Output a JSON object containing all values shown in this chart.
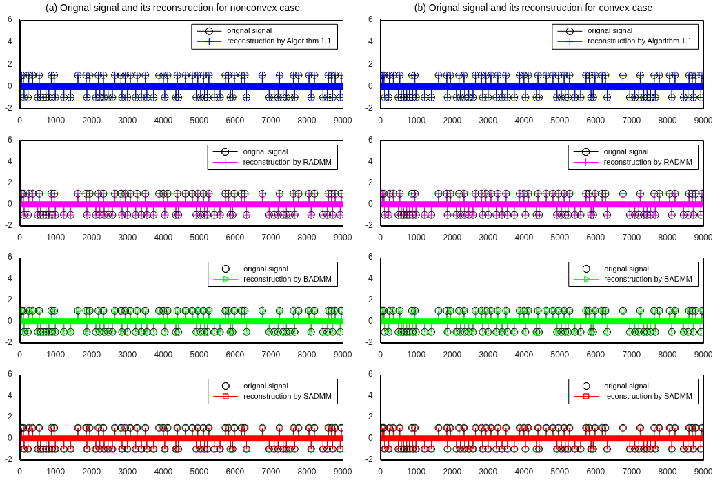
{
  "chart_data": [
    {
      "type": "lollipop",
      "title": "(a) Orignal signal and its reconstruction for nonconvex case",
      "x": [
        50,
        100,
        120,
        230,
        250,
        360,
        500,
        540,
        580,
        650,
        730,
        810,
        880,
        900,
        960,
        990,
        1230,
        1420,
        1620,
        1850,
        1870,
        1950,
        2120,
        2190,
        2230,
        2330,
        2350,
        2460,
        2580,
        2650,
        2820,
        2850,
        2940,
        3000,
        3080,
        3230,
        3270,
        3390,
        3500,
        3540,
        3730,
        3880,
        4000,
        4040,
        4120,
        4350,
        4390,
        4420,
        4620,
        4810,
        4920,
        4960,
        5040,
        5120,
        5150,
        5230,
        5270,
        5420,
        5580,
        5730,
        5820,
        5870,
        5930,
        5980,
        6180,
        6270,
        6320,
        6760,
        6950,
        7090,
        7200,
        7240,
        7340,
        7430,
        7530,
        7630,
        7660,
        7770,
        8060,
        8120,
        8210,
        8450,
        8570,
        8600,
        8690,
        8720,
        8790,
        8930,
        8960
      ],
      "xlim": [
        0,
        9000
      ],
      "xticks": [
        0,
        1000,
        2000,
        3000,
        4000,
        5000,
        6000,
        7000,
        8000,
        9000
      ],
      "ylim": [
        -2,
        6
      ],
      "yticks": [
        -2,
        0,
        2,
        4,
        6
      ],
      "legend": "top right",
      "ref_lines": [
        {
          "axis": "y",
          "value": 0,
          "color": "#0000ff"
        }
      ],
      "series": [
        {
          "name": "orignal signal",
          "color": "#000000",
          "marker": "circle",
          "values": [
            1,
            1,
            -1,
            -1,
            1,
            1,
            -1,
            1,
            -1,
            -1,
            -1,
            -1,
            1,
            -1,
            1,
            -1,
            -1,
            -1,
            1,
            1,
            -1,
            1,
            -1,
            1,
            -1,
            1,
            -1,
            -1,
            -1,
            1,
            1,
            -1,
            1,
            -1,
            1,
            -1,
            1,
            -1,
            1,
            -1,
            -1,
            1,
            1,
            -1,
            1,
            -1,
            1,
            -1,
            1,
            1,
            -1,
            1,
            -1,
            1,
            -1,
            -1,
            1,
            -1,
            -1,
            1,
            1,
            -1,
            -1,
            1,
            1,
            1,
            -1,
            1,
            -1,
            -1,
            -1,
            1,
            -1,
            -1,
            -1,
            1,
            -1,
            1,
            1,
            -1,
            1,
            -1,
            -1,
            1,
            1,
            -1,
            1,
            -1,
            1
          ]
        },
        {
          "name": "reconstruction by Algorithm 1.1",
          "color": "#0000ff",
          "marker": "cross",
          "values": [
            1,
            1,
            -1,
            -1,
            1,
            1,
            -1,
            1,
            -1,
            -1,
            -1,
            -1,
            1,
            -1,
            1,
            -1,
            -1,
            -1,
            1,
            1,
            -1,
            1,
            -1,
            1,
            -1,
            1,
            -1,
            -1,
            -1,
            1,
            1,
            -1,
            1,
            -1,
            1,
            -1,
            1,
            -1,
            1,
            -1,
            -1,
            1,
            1,
            -1,
            1,
            -1,
            1,
            -1,
            1,
            1,
            -1,
            1,
            -1,
            1,
            -1,
            -1,
            1,
            -1,
            -1,
            1,
            1,
            -1,
            -1,
            1,
            1,
            1,
            -1,
            1,
            -1,
            -1,
            -1,
            1,
            -1,
            -1,
            -1,
            1,
            -1,
            1,
            1,
            -1,
            1,
            -1,
            -1,
            1,
            1,
            -1,
            1,
            -1,
            1
          ]
        }
      ]
    },
    {
      "type": "lollipop",
      "title": "(b) Orignal signal and its reconstruction for convex case",
      "x": [
        50,
        100,
        120,
        230,
        250,
        360,
        500,
        540,
        580,
        650,
        730,
        810,
        880,
        900,
        960,
        990,
        1230,
        1420,
        1620,
        1850,
        1870,
        1950,
        2120,
        2190,
        2230,
        2330,
        2350,
        2460,
        2580,
        2650,
        2820,
        2850,
        2940,
        3000,
        3080,
        3230,
        3270,
        3390,
        3500,
        3540,
        3730,
        3880,
        4000,
        4040,
        4120,
        4350,
        4390,
        4420,
        4620,
        4810,
        4920,
        4960,
        5040,
        5120,
        5150,
        5230,
        5270,
        5420,
        5580,
        5730,
        5820,
        5870,
        5930,
        5980,
        6180,
        6270,
        6320,
        6760,
        6950,
        7090,
        7200,
        7240,
        7340,
        7430,
        7530,
        7630,
        7660,
        7770,
        8060,
        8120,
        8210,
        8450,
        8570,
        8600,
        8690,
        8720,
        8790,
        8930,
        8960
      ],
      "xlim": [
        0,
        9000
      ],
      "xticks": [
        0,
        1000,
        2000,
        3000,
        4000,
        5000,
        6000,
        7000,
        8000,
        9000
      ],
      "ylim": [
        -2,
        6
      ],
      "yticks": [
        -2,
        0,
        2,
        4,
        6
      ],
      "legend": "top right",
      "ref_lines": [
        {
          "axis": "y",
          "value": 0,
          "color": "#0000ff"
        }
      ],
      "series": [
        {
          "name": "orignal signal",
          "color": "#000000",
          "marker": "circle",
          "values": [
            1,
            1,
            -1,
            -1,
            1,
            1,
            -1,
            1,
            -1,
            -1,
            -1,
            -1,
            1,
            -1,
            1,
            -1,
            -1,
            -1,
            1,
            1,
            -1,
            1,
            -1,
            1,
            -1,
            1,
            -1,
            -1,
            -1,
            1,
            1,
            -1,
            1,
            -1,
            1,
            -1,
            1,
            -1,
            1,
            -1,
            -1,
            1,
            1,
            -1,
            1,
            -1,
            1,
            -1,
            1,
            1,
            -1,
            1,
            -1,
            1,
            -1,
            -1,
            1,
            -1,
            -1,
            1,
            1,
            -1,
            -1,
            1,
            1,
            1,
            -1,
            1,
            -1,
            -1,
            -1,
            1,
            -1,
            -1,
            -1,
            1,
            -1,
            1,
            1,
            -1,
            1,
            -1,
            -1,
            1,
            1,
            -1,
            1,
            -1,
            1
          ]
        },
        {
          "name": "reconstruction by Algorithm 1.1",
          "color": "#0000ff",
          "marker": "cross",
          "values": [
            1,
            1,
            -1,
            -1,
            1,
            1,
            -1,
            1,
            -1,
            -1,
            -1,
            -1,
            1,
            -1,
            1,
            -1,
            -1,
            -1,
            1,
            1,
            -1,
            1,
            -1,
            1,
            -1,
            1,
            -1,
            -1,
            -1,
            1,
            1,
            -1,
            1,
            -1,
            1,
            -1,
            1,
            -1,
            1,
            -1,
            -1,
            1,
            1,
            -1,
            1,
            -1,
            1,
            -1,
            1,
            1,
            -1,
            1,
            -1,
            1,
            -1,
            -1,
            1,
            -1,
            -1,
            1,
            1,
            -1,
            -1,
            1,
            1,
            1,
            -1,
            1,
            -1,
            -1,
            -1,
            1,
            -1,
            -1,
            -1,
            1,
            -1,
            1,
            1,
            -1,
            1,
            -1,
            -1,
            1,
            1,
            -1,
            1,
            -1,
            1
          ]
        }
      ]
    },
    {
      "type": "lollipop",
      "x": [
        50,
        100,
        120,
        230,
        250,
        360,
        500,
        540,
        580,
        650,
        730,
        810,
        880,
        900,
        960,
        990,
        1230,
        1420,
        1620,
        1850,
        1870,
        1950,
        2120,
        2190,
        2230,
        2330,
        2350,
        2460,
        2580,
        2650,
        2820,
        2850,
        2940,
        3000,
        3080,
        3230,
        3270,
        3390,
        3500,
        3540,
        3730,
        3880,
        4000,
        4040,
        4120,
        4350,
        4390,
        4420,
        4620,
        4810,
        4920,
        4960,
        5040,
        5120,
        5150,
        5230,
        5270,
        5420,
        5580,
        5730,
        5820,
        5870,
        5930,
        5980,
        6180,
        6270,
        6320,
        6760,
        6950,
        7090,
        7200,
        7240,
        7340,
        7430,
        7530,
        7630,
        7660,
        7770,
        8060,
        8120,
        8210,
        8450,
        8570,
        8600,
        8690,
        8720,
        8790,
        8930,
        8960
      ],
      "xlim": [
        0,
        9000
      ],
      "xticks": [
        0,
        1000,
        2000,
        3000,
        4000,
        5000,
        6000,
        7000,
        8000,
        9000
      ],
      "ylim": [
        -2,
        6
      ],
      "yticks": [
        -2,
        0,
        2,
        4,
        6
      ],
      "legend": "top right",
      "ref_lines": [
        {
          "axis": "y",
          "value": 0,
          "color": "#ff00ff"
        }
      ],
      "series": [
        {
          "name": "orignal signal",
          "color": "#000000",
          "marker": "circle",
          "values": [
            1,
            1,
            -1,
            -1,
            1,
            1,
            -1,
            1,
            -1,
            -1,
            -1,
            -1,
            1,
            -1,
            1,
            -1,
            -1,
            -1,
            1,
            1,
            -1,
            1,
            -1,
            1,
            -1,
            1,
            -1,
            -1,
            -1,
            1,
            1,
            -1,
            1,
            -1,
            1,
            -1,
            1,
            -1,
            1,
            -1,
            -1,
            1,
            1,
            -1,
            1,
            -1,
            1,
            -1,
            1,
            1,
            -1,
            1,
            -1,
            1,
            -1,
            -1,
            1,
            -1,
            -1,
            1,
            1,
            -1,
            -1,
            1,
            1,
            1,
            -1,
            1,
            -1,
            -1,
            -1,
            1,
            -1,
            -1,
            -1,
            1,
            -1,
            1,
            1,
            -1,
            1,
            -1,
            -1,
            1,
            1,
            -1,
            1,
            -1,
            1
          ]
        },
        {
          "name": "reconstruction by RADMM",
          "color": "#ff00ff",
          "marker": "cross",
          "values": [
            1,
            1,
            -1,
            -1,
            1,
            1,
            -1,
            1,
            -1,
            -1,
            -1,
            -1,
            1,
            -1,
            1,
            -1,
            -1,
            -1,
            1,
            1,
            -1,
            1,
            -1,
            1,
            -1,
            1,
            -1,
            -1,
            -1,
            1,
            1,
            -1,
            1,
            -1,
            1,
            -1,
            1,
            -1,
            1,
            -1,
            -1,
            1,
            1,
            -1,
            1,
            -1,
            1,
            -1,
            1,
            1,
            -1,
            1,
            -1,
            1,
            -1,
            -1,
            1,
            -1,
            -1,
            1,
            1,
            -1,
            -1,
            1,
            1,
            1,
            -1,
            1,
            -1,
            -1,
            -1,
            1,
            -1,
            -1,
            -1,
            1,
            -1,
            1,
            1,
            -1,
            1,
            -1,
            -1,
            1,
            1,
            -1,
            1,
            -1,
            1
          ]
        }
      ]
    },
    {
      "type": "lollipop",
      "x": [
        50,
        100,
        120,
        230,
        250,
        360,
        500,
        540,
        580,
        650,
        730,
        810,
        880,
        900,
        960,
        990,
        1230,
        1420,
        1620,
        1850,
        1870,
        1950,
        2120,
        2190,
        2230,
        2330,
        2350,
        2460,
        2580,
        2650,
        2820,
        2850,
        2940,
        3000,
        3080,
        3230,
        3270,
        3390,
        3500,
        3540,
        3730,
        3880,
        4000,
        4040,
        4120,
        4350,
        4390,
        4420,
        4620,
        4810,
        4920,
        4960,
        5040,
        5120,
        5150,
        5230,
        5270,
        5420,
        5580,
        5730,
        5820,
        5870,
        5930,
        5980,
        6180,
        6270,
        6320,
        6760,
        6950,
        7090,
        7200,
        7240,
        7340,
        7430,
        7530,
        7630,
        7660,
        7770,
        8060,
        8120,
        8210,
        8450,
        8570,
        8600,
        8690,
        8720,
        8790,
        8930,
        8960
      ],
      "xlim": [
        0,
        9000
      ],
      "xticks": [
        0,
        1000,
        2000,
        3000,
        4000,
        5000,
        6000,
        7000,
        8000,
        9000
      ],
      "ylim": [
        -2,
        6
      ],
      "yticks": [
        -2,
        0,
        2,
        4,
        6
      ],
      "legend": "top right",
      "ref_lines": [
        {
          "axis": "y",
          "value": 0,
          "color": "#ff00ff"
        }
      ],
      "series": [
        {
          "name": "orignal signal",
          "color": "#000000",
          "marker": "circle",
          "values": [
            1,
            1,
            -1,
            -1,
            1,
            1,
            -1,
            1,
            -1,
            -1,
            -1,
            -1,
            1,
            -1,
            1,
            -1,
            -1,
            -1,
            1,
            1,
            -1,
            1,
            -1,
            1,
            -1,
            1,
            -1,
            -1,
            -1,
            1,
            1,
            -1,
            1,
            -1,
            1,
            -1,
            1,
            -1,
            1,
            -1,
            -1,
            1,
            1,
            -1,
            1,
            -1,
            1,
            -1,
            1,
            1,
            -1,
            1,
            -1,
            1,
            -1,
            -1,
            1,
            -1,
            -1,
            1,
            1,
            -1,
            -1,
            1,
            1,
            1,
            -1,
            1,
            -1,
            -1,
            -1,
            1,
            -1,
            -1,
            -1,
            1,
            -1,
            1,
            1,
            -1,
            1,
            -1,
            -1,
            1,
            1,
            -1,
            1,
            -1,
            1
          ]
        },
        {
          "name": "reconstruction by RADMM",
          "color": "#ff00ff",
          "marker": "cross",
          "values": [
            1,
            1,
            -1,
            -1,
            1,
            1,
            -1,
            1,
            -1,
            -1,
            -1,
            -1,
            1,
            -1,
            1,
            -1,
            -1,
            -1,
            1,
            1,
            -1,
            1,
            -1,
            1,
            -1,
            1,
            -1,
            -1,
            -1,
            1,
            1,
            -1,
            1,
            -1,
            1,
            -1,
            1,
            -1,
            1,
            -1,
            -1,
            1,
            1,
            -1,
            1,
            -1,
            1,
            -1,
            1,
            1,
            -1,
            1,
            -1,
            1,
            -1,
            -1,
            1,
            -1,
            -1,
            1,
            1,
            -1,
            -1,
            1,
            1,
            1,
            -1,
            1,
            -1,
            -1,
            -1,
            1,
            -1,
            -1,
            -1,
            1,
            -1,
            1,
            1,
            -1,
            1,
            -1,
            -1,
            1,
            1,
            -1,
            1,
            -1,
            1
          ]
        }
      ]
    },
    {
      "type": "lollipop",
      "x": [
        50,
        100,
        120,
        230,
        250,
        360,
        500,
        540,
        580,
        650,
        730,
        810,
        880,
        900,
        960,
        990,
        1230,
        1420,
        1620,
        1850,
        1870,
        1950,
        2120,
        2190,
        2230,
        2330,
        2350,
        2460,
        2580,
        2650,
        2820,
        2850,
        2940,
        3000,
        3080,
        3230,
        3270,
        3390,
        3500,
        3540,
        3730,
        3880,
        4000,
        4040,
        4120,
        4350,
        4390,
        4420,
        4620,
        4810,
        4920,
        4960,
        5040,
        5120,
        5150,
        5230,
        5270,
        5420,
        5580,
        5730,
        5820,
        5870,
        5930,
        5980,
        6180,
        6270,
        6320,
        6760,
        6950,
        7090,
        7200,
        7240,
        7340,
        7430,
        7530,
        7630,
        7660,
        7770,
        8060,
        8120,
        8210,
        8450,
        8570,
        8600,
        8690,
        8720,
        8790,
        8930,
        8960
      ],
      "xlim": [
        0,
        9000
      ],
      "xticks": [
        0,
        1000,
        2000,
        3000,
        4000,
        5000,
        6000,
        7000,
        8000,
        9000
      ],
      "ylim": [
        -2,
        6
      ],
      "yticks": [
        -2,
        0,
        2,
        4,
        6
      ],
      "legend": "top right",
      "ref_lines": [
        {
          "axis": "y",
          "value": 0,
          "color": "#00ff00"
        }
      ],
      "series": [
        {
          "name": "orignal signal",
          "color": "#000000",
          "marker": "circle",
          "values": [
            1,
            1,
            -1,
            -1,
            1,
            1,
            -1,
            1,
            -1,
            -1,
            -1,
            -1,
            1,
            -1,
            1,
            -1,
            -1,
            -1,
            1,
            1,
            -1,
            1,
            -1,
            1,
            -1,
            1,
            -1,
            -1,
            -1,
            1,
            1,
            -1,
            1,
            -1,
            1,
            -1,
            1,
            -1,
            1,
            -1,
            -1,
            1,
            1,
            -1,
            1,
            -1,
            1,
            -1,
            1,
            1,
            -1,
            1,
            -1,
            1,
            -1,
            -1,
            1,
            -1,
            -1,
            1,
            1,
            -1,
            -1,
            1,
            1,
            1,
            -1,
            1,
            -1,
            -1,
            -1,
            1,
            -1,
            -1,
            -1,
            1,
            -1,
            1,
            1,
            -1,
            1,
            -1,
            -1,
            1,
            1,
            -1,
            1,
            -1,
            1
          ]
        },
        {
          "name": "reconstruction by BADMM",
          "color": "#00ff00",
          "marker": "triangle",
          "values": [
            1,
            1,
            -1,
            -1,
            1,
            1,
            -1,
            1,
            -1,
            -1,
            -1,
            -1,
            1,
            -1,
            1,
            -1,
            -1,
            -1,
            1,
            1,
            -1,
            1,
            -1,
            1,
            -1,
            1,
            -1,
            -1,
            -1,
            1,
            1,
            -1,
            1,
            -1,
            1,
            -1,
            1,
            -1,
            1,
            -1,
            -1,
            1,
            1,
            -1,
            1,
            -1,
            1,
            -1,
            1,
            1,
            -1,
            1,
            -1,
            1,
            -1,
            -1,
            1,
            -1,
            -1,
            1,
            1,
            -1,
            -1,
            1,
            1,
            1,
            -1,
            1,
            -1,
            -1,
            -1,
            1,
            -1,
            -1,
            -1,
            1,
            -1,
            1,
            1,
            -1,
            1,
            -1,
            -1,
            1,
            1,
            -1,
            1,
            -1,
            1
          ]
        }
      ]
    },
    {
      "type": "lollipop",
      "x": [
        50,
        100,
        120,
        230,
        250,
        360,
        500,
        540,
        580,
        650,
        730,
        810,
        880,
        900,
        960,
        990,
        1230,
        1420,
        1620,
        1850,
        1870,
        1950,
        2120,
        2190,
        2230,
        2330,
        2350,
        2460,
        2580,
        2650,
        2820,
        2850,
        2940,
        3000,
        3080,
        3230,
        3270,
        3390,
        3500,
        3540,
        3730,
        3880,
        4000,
        4040,
        4120,
        4350,
        4390,
        4420,
        4620,
        4810,
        4920,
        4960,
        5040,
        5120,
        5150,
        5230,
        5270,
        5420,
        5580,
        5730,
        5820,
        5870,
        5930,
        5980,
        6180,
        6270,
        6320,
        6760,
        6950,
        7090,
        7200,
        7240,
        7340,
        7430,
        7530,
        7630,
        7660,
        7770,
        8060,
        8120,
        8210,
        8450,
        8570,
        8600,
        8690,
        8720,
        8790,
        8930,
        8960
      ],
      "xlim": [
        0,
        9000
      ],
      "xticks": [
        0,
        1000,
        2000,
        3000,
        4000,
        5000,
        6000,
        7000,
        8000,
        9000
      ],
      "ylim": [
        -2,
        6
      ],
      "yticks": [
        -2,
        0,
        2,
        4,
        6
      ],
      "legend": "top right",
      "ref_lines": [
        {
          "axis": "y",
          "value": 0,
          "color": "#00ff00"
        }
      ],
      "series": [
        {
          "name": "orignal signal",
          "color": "#000000",
          "marker": "circle",
          "values": [
            1,
            1,
            -1,
            -1,
            1,
            1,
            -1,
            1,
            -1,
            -1,
            -1,
            -1,
            1,
            -1,
            1,
            -1,
            -1,
            -1,
            1,
            1,
            -1,
            1,
            -1,
            1,
            -1,
            1,
            -1,
            -1,
            -1,
            1,
            1,
            -1,
            1,
            -1,
            1,
            -1,
            1,
            -1,
            1,
            -1,
            -1,
            1,
            1,
            -1,
            1,
            -1,
            1,
            -1,
            1,
            1,
            -1,
            1,
            -1,
            1,
            -1,
            -1,
            1,
            -1,
            -1,
            1,
            1,
            -1,
            -1,
            1,
            1,
            1,
            -1,
            1,
            -1,
            -1,
            -1,
            1,
            -1,
            -1,
            -1,
            1,
            -1,
            1,
            1,
            -1,
            1,
            -1,
            -1,
            1,
            1,
            -1,
            1,
            -1,
            1
          ]
        },
        {
          "name": "reconstruction by BADMM",
          "color": "#00ff00",
          "marker": "triangle",
          "values": [
            1,
            1,
            -1,
            -1,
            1,
            1,
            -1,
            1,
            -1,
            -1,
            -1,
            -1,
            1,
            -1,
            1,
            -1,
            -1,
            -1,
            1,
            1,
            -1,
            1,
            -1,
            1,
            -1,
            1,
            -1,
            -1,
            -1,
            1,
            1,
            -1,
            1,
            -1,
            1,
            -1,
            1,
            -1,
            1,
            -1,
            -1,
            1,
            1,
            -1,
            1,
            -1,
            1,
            -1,
            1,
            1,
            -1,
            1,
            -1,
            1,
            -1,
            -1,
            1,
            -1,
            -1,
            1,
            1,
            -1,
            -1,
            1,
            1,
            1,
            -1,
            1,
            -1,
            -1,
            -1,
            1,
            -1,
            -1,
            -1,
            1,
            -1,
            1,
            1,
            -1,
            1,
            -1,
            -1,
            1,
            1,
            -1,
            1,
            -1,
            1
          ]
        }
      ]
    },
    {
      "type": "lollipop",
      "x": [
        50,
        100,
        120,
        230,
        250,
        360,
        500,
        540,
        580,
        650,
        730,
        810,
        880,
        900,
        960,
        990,
        1230,
        1420,
        1620,
        1850,
        1870,
        1950,
        2120,
        2190,
        2230,
        2330,
        2350,
        2460,
        2580,
        2650,
        2820,
        2850,
        2940,
        3000,
        3080,
        3230,
        3270,
        3390,
        3500,
        3540,
        3730,
        3880,
        4000,
        4040,
        4120,
        4350,
        4390,
        4420,
        4620,
        4810,
        4920,
        4960,
        5040,
        5120,
        5150,
        5230,
        5270,
        5420,
        5580,
        5730,
        5820,
        5870,
        5930,
        5980,
        6180,
        6270,
        6320,
        6760,
        6950,
        7090,
        7200,
        7240,
        7340,
        7430,
        7530,
        7630,
        7660,
        7770,
        8060,
        8120,
        8210,
        8450,
        8570,
        8600,
        8690,
        8720,
        8790,
        8930,
        8960
      ],
      "xlim": [
        0,
        9000
      ],
      "xticks": [
        0,
        1000,
        2000,
        3000,
        4000,
        5000,
        6000,
        7000,
        8000,
        9000
      ],
      "ylim": [
        -2,
        6
      ],
      "yticks": [
        -2,
        0,
        2,
        4,
        6
      ],
      "legend": "top right",
      "ref_lines": [
        {
          "axis": "y",
          "value": 0,
          "color": "#ff0000"
        }
      ],
      "series": [
        {
          "name": "orignal signal",
          "color": "#000000",
          "marker": "circle",
          "values": [
            1,
            1,
            -1,
            -1,
            1,
            1,
            -1,
            1,
            -1,
            -1,
            -1,
            -1,
            1,
            -1,
            1,
            -1,
            -1,
            -1,
            1,
            1,
            -1,
            1,
            -1,
            1,
            -1,
            1,
            -1,
            -1,
            -1,
            1,
            1,
            -1,
            1,
            -1,
            1,
            -1,
            1,
            -1,
            1,
            -1,
            -1,
            1,
            1,
            -1,
            1,
            -1,
            1,
            -1,
            1,
            1,
            -1,
            1,
            -1,
            1,
            -1,
            -1,
            1,
            -1,
            -1,
            1,
            1,
            -1,
            -1,
            1,
            1,
            1,
            -1,
            1,
            -1,
            -1,
            -1,
            1,
            -1,
            -1,
            -1,
            1,
            -1,
            1,
            1,
            -1,
            1,
            -1,
            -1,
            1,
            1,
            -1,
            1,
            -1,
            1
          ]
        },
        {
          "name": "reconstruction by SADMM",
          "color": "#ff0000",
          "marker": "square",
          "values": [
            1,
            1,
            -1,
            -1,
            1,
            1,
            -1,
            1,
            -1,
            -1,
            -1,
            -1,
            1,
            -1,
            1,
            -1,
            -1,
            -1,
            1,
            1,
            -1,
            1,
            -1,
            1,
            -1,
            1,
            -1,
            -1,
            -1,
            1,
            1,
            -1,
            1,
            -1,
            1,
            -1,
            1,
            -1,
            1,
            -1,
            -1,
            1,
            1,
            -1,
            1,
            -1,
            1,
            -1,
            1,
            1,
            -1,
            1,
            -1,
            1,
            -1,
            -1,
            1,
            -1,
            -1,
            1,
            1,
            -1,
            -1,
            1,
            1,
            1,
            -1,
            1,
            -1,
            -1,
            -1,
            1,
            -1,
            -1,
            -1,
            1,
            -1,
            1,
            1,
            -1,
            1,
            -1,
            -1,
            1,
            1,
            -1,
            1,
            -1,
            1
          ]
        }
      ]
    },
    {
      "type": "lollipop",
      "x": [
        50,
        100,
        120,
        230,
        250,
        360,
        500,
        540,
        580,
        650,
        730,
        810,
        880,
        900,
        960,
        990,
        1230,
        1420,
        1620,
        1850,
        1870,
        1950,
        2120,
        2190,
        2230,
        2330,
        2350,
        2460,
        2580,
        2650,
        2820,
        2850,
        2940,
        3000,
        3080,
        3230,
        3270,
        3390,
        3500,
        3540,
        3730,
        3880,
        4000,
        4040,
        4120,
        4350,
        4390,
        4420,
        4620,
        4810,
        4920,
        4960,
        5040,
        5120,
        5150,
        5230,
        5270,
        5420,
        5580,
        5730,
        5820,
        5870,
        5930,
        5980,
        6180,
        6270,
        6320,
        6760,
        6950,
        7090,
        7200,
        7240,
        7340,
        7430,
        7530,
        7630,
        7660,
        7770,
        8060,
        8120,
        8210,
        8450,
        8570,
        8600,
        8690,
        8720,
        8790,
        8930,
        8960
      ],
      "xlim": [
        0,
        9000
      ],
      "xticks": [
        0,
        1000,
        2000,
        3000,
        4000,
        5000,
        6000,
        7000,
        8000,
        9000
      ],
      "ylim": [
        -2,
        6
      ],
      "yticks": [
        -2,
        0,
        2,
        4,
        6
      ],
      "legend": "top right",
      "ref_lines": [
        {
          "axis": "y",
          "value": 0,
          "color": "#ff0000"
        }
      ],
      "series": [
        {
          "name": "orignal signal",
          "color": "#000000",
          "marker": "circle",
          "values": [
            1,
            1,
            -1,
            -1,
            1,
            1,
            -1,
            1,
            -1,
            -1,
            -1,
            -1,
            1,
            -1,
            1,
            -1,
            -1,
            -1,
            1,
            1,
            -1,
            1,
            -1,
            1,
            -1,
            1,
            -1,
            -1,
            -1,
            1,
            1,
            -1,
            1,
            -1,
            1,
            -1,
            1,
            -1,
            1,
            -1,
            -1,
            1,
            1,
            -1,
            1,
            -1,
            1,
            -1,
            1,
            1,
            -1,
            1,
            -1,
            1,
            -1,
            -1,
            1,
            -1,
            -1,
            1,
            1,
            -1,
            -1,
            1,
            1,
            1,
            -1,
            1,
            -1,
            -1,
            -1,
            1,
            -1,
            -1,
            -1,
            1,
            -1,
            1,
            1,
            -1,
            1,
            -1,
            -1,
            1,
            1,
            -1,
            1,
            -1,
            1
          ]
        },
        {
          "name": "reconstruction by SADMM",
          "color": "#ff0000",
          "marker": "square",
          "values": [
            1,
            1,
            -1,
            -1,
            1,
            1,
            -1,
            1,
            -1,
            -1,
            -1,
            -1,
            1,
            -1,
            1,
            -1,
            -1,
            -1,
            1,
            1,
            -1,
            1,
            -1,
            1,
            -1,
            1,
            -1,
            -1,
            -1,
            1,
            1,
            -1,
            1,
            -1,
            1,
            -1,
            1,
            -1,
            1,
            -1,
            -1,
            1,
            1,
            -1,
            1,
            -1,
            1,
            -1,
            1,
            1,
            -1,
            1,
            -1,
            1,
            -1,
            -1,
            1,
            -1,
            -1,
            1,
            1,
            -1,
            -1,
            1,
            1,
            1,
            -1,
            1,
            -1,
            -1,
            -1,
            1,
            -1,
            -1,
            -1,
            1,
            -1,
            1,
            1,
            -1,
            1,
            -1,
            -1,
            1,
            1,
            -1,
            1,
            -1,
            1
          ]
        }
      ]
    }
  ]
}
